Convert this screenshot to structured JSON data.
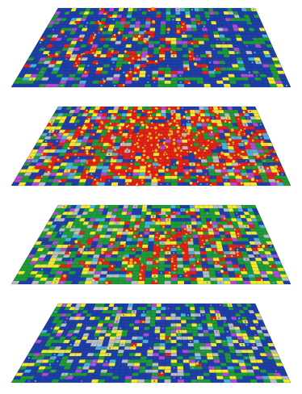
{
  "figure": {
    "layers": [
      {
        "id": "layer-1",
        "dominant": "blue",
        "secondary": [
          "red",
          "green",
          "yellow",
          "purple"
        ],
        "red_blob": [
          0.42,
          0.55,
          0.4,
          0.55
        ],
        "red_level": 0.35
      },
      {
        "id": "layer-2",
        "dominant": "red",
        "secondary": [
          "blue",
          "green",
          "yellow",
          "purple"
        ],
        "red_blob": [
          0.56,
          0.5,
          0.55,
          0.7
        ],
        "red_level": 0.8
      },
      {
        "id": "layer-3",
        "dominant": "green",
        "secondary": [
          "blue",
          "red",
          "yellow",
          "purple"
        ],
        "red_blob": [
          0.56,
          0.58,
          0.45,
          0.55
        ],
        "red_level": 0.45
      },
      {
        "id": "layer-4",
        "dominant": "blue",
        "secondary": [
          "green",
          "yellow",
          "gray",
          "purple"
        ],
        "red_blob": [
          0.6,
          0.55,
          0.3,
          0.4
        ],
        "red_level": 0.05
      }
    ],
    "palette": {
      "blue": "#1f3fa8",
      "red": "#e32019",
      "green": "#1f9a3a",
      "yellow": "#f1e832",
      "purple": "#b04bd0",
      "gray": "#b9bcc0",
      "cyan": "#49b3d6",
      "orange": "#f3b420"
    }
  }
}
